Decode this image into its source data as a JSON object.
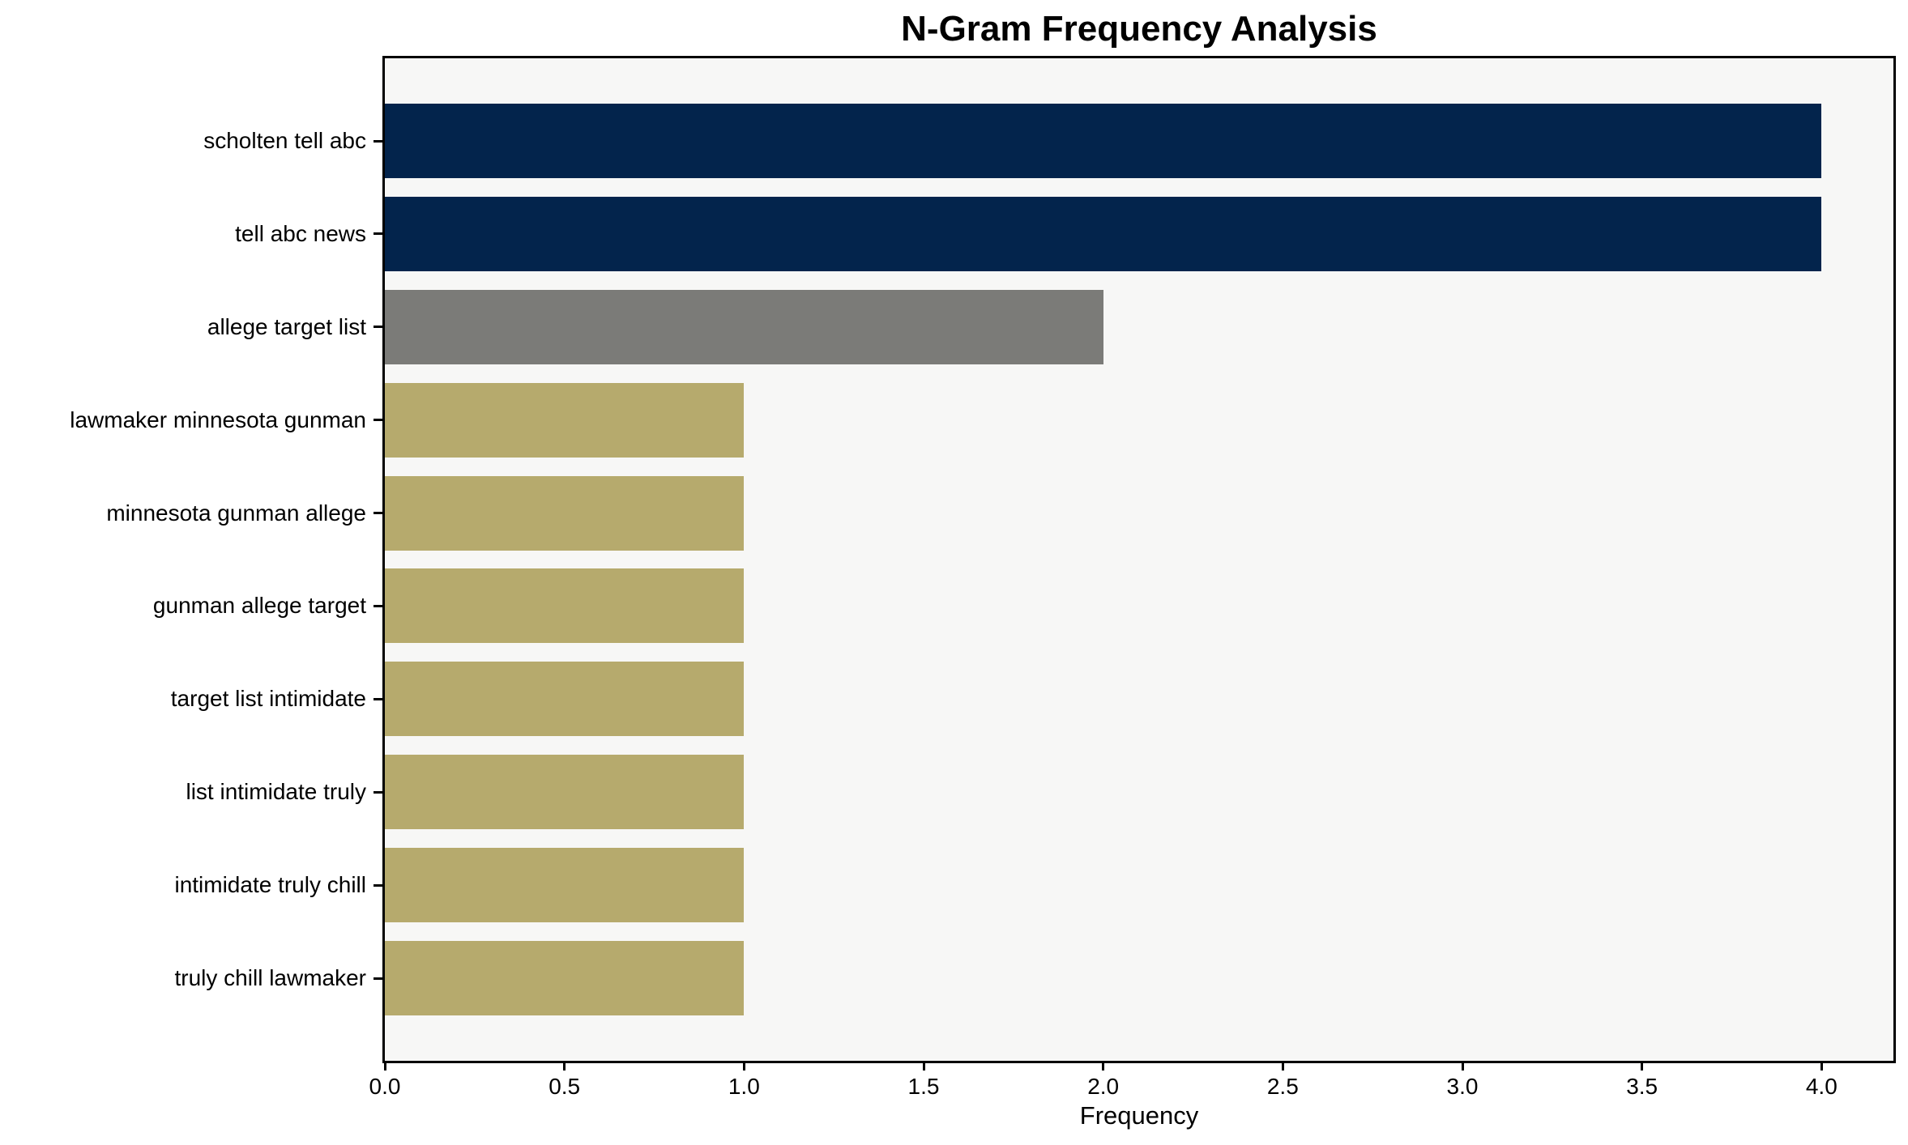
{
  "chart_data": {
    "type": "bar",
    "orientation": "horizontal",
    "title": "N-Gram Frequency Analysis",
    "xlabel": "Frequency",
    "ylabel": "",
    "categories": [
      "scholten tell abc",
      "tell abc news",
      "allege target list",
      "lawmaker minnesota gunman",
      "minnesota gunman allege",
      "gunman allege target",
      "target list intimidate",
      "list intimidate truly",
      "intimidate truly chill",
      "truly chill lawmaker"
    ],
    "values": [
      4,
      4,
      2,
      1,
      1,
      1,
      1,
      1,
      1,
      1
    ],
    "bar_colors": [
      "#03244c",
      "#03244c",
      "#7b7b78",
      "#b6aa6d",
      "#b6aa6d",
      "#b6aa6d",
      "#b6aa6d",
      "#b6aa6d",
      "#b6aa6d",
      "#b6aa6d"
    ],
    "xlim": [
      0,
      4.2
    ],
    "xticks": [
      0,
      0.5,
      1,
      1.5,
      2,
      2.5,
      3,
      3.5,
      4
    ],
    "xtick_labels": [
      "0.0",
      "0.5",
      "1.0",
      "1.5",
      "2.0",
      "2.5",
      "3.0",
      "3.5",
      "4.0"
    ],
    "grid": false,
    "legend": null,
    "colors": {
      "bar_high": "#03244c",
      "bar_mid": "#7b7b78",
      "bar_low": "#b6aa6d",
      "plot_background": "#f7f7f6",
      "figure_background": "#ffffff",
      "axis": "#000000",
      "text": "#000000"
    }
  }
}
